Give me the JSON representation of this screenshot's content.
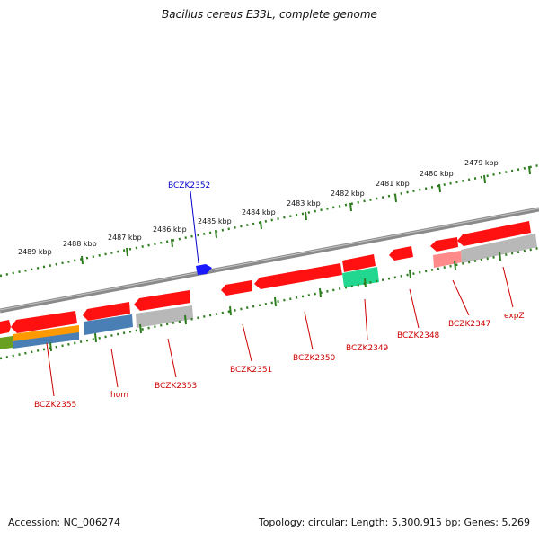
{
  "title": "Bacillus cereus E33L, complete genome",
  "accession_text": "Accession: NC_006274",
  "topology_text": "Topology: circular; Length: 5,300,915 bp; Genes: 5,269",
  "colors": {
    "backbone": "#8a8a8a",
    "scale_dots": "#2e7d1e",
    "gene_red": "#ff1111",
    "label_red": "#cc0000",
    "label_blue": "#0000cc",
    "cds_blue": "#1a1aff",
    "steel_blue": "#4a7fb5",
    "orange": "#ff9900",
    "green_gene": "#22d890",
    "grey_gene": "#b8b8b8",
    "pink_gene": "#ff8a8a",
    "olive_gene": "#6aa022"
  },
  "scale_labels": [
    "2489 kbp",
    "2488 kbp",
    "2487 kbp",
    "2486 kbp",
    "2485 kbp",
    "2484 kbp",
    "2483 kbp",
    "2482 kbp",
    "2481 kbp",
    "2480 kbp",
    "2479 kbp"
  ],
  "gene_labels": [
    "BCZK2352",
    "BCZK2355",
    "hom",
    "BCZK2353",
    "BCZK2351",
    "BCZK2350",
    "BCZK2349",
    "BCZK2348",
    "BCZK2347",
    "expZ"
  ]
}
